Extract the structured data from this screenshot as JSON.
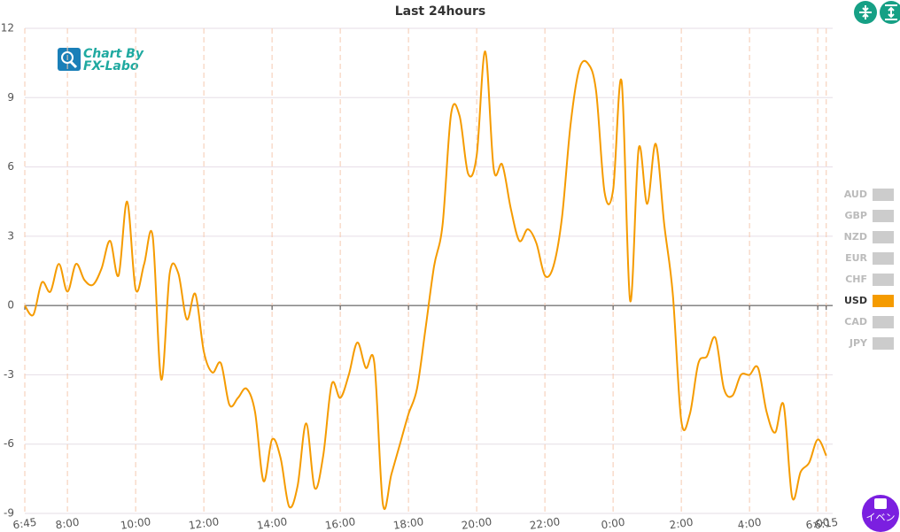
{
  "chart_data": {
    "type": "line",
    "title": "Last 24hours",
    "logo": [
      "Chart By",
      "FX-Labo"
    ],
    "event_button": "イベン",
    "categories": [
      "6:45",
      null,
      null,
      null,
      null,
      "8:00",
      null,
      null,
      null,
      null,
      null,
      null,
      null,
      "10:00",
      null,
      null,
      null,
      null,
      null,
      null,
      null,
      "12:00",
      null,
      null,
      null,
      null,
      null,
      null,
      null,
      "14:00",
      null,
      null,
      null,
      null,
      null,
      null,
      null,
      "16:00",
      null,
      null,
      null,
      null,
      null,
      null,
      null,
      "18:00",
      null,
      null,
      null,
      null,
      null,
      null,
      null,
      "20:00",
      null,
      null,
      null,
      null,
      null,
      null,
      null,
      "22:00",
      null,
      null,
      null,
      null,
      null,
      null,
      null,
      "0:00",
      null,
      null,
      null,
      null,
      null,
      null,
      null,
      "2:00",
      null,
      null,
      null,
      null,
      null,
      null,
      null,
      "4:00",
      null,
      null,
      null,
      null,
      null,
      null,
      null,
      "6:00",
      "6:15"
    ],
    "series": [
      {
        "name": "AUD",
        "color": "#cccccc",
        "visible": false
      },
      {
        "name": "GBP",
        "color": "#cccccc",
        "visible": false
      },
      {
        "name": "NZD",
        "color": "#cccccc",
        "visible": false
      },
      {
        "name": "EUR",
        "color": "#cccccc",
        "visible": false
      },
      {
        "name": "CHF",
        "color": "#cccccc",
        "visible": false
      },
      {
        "name": "USD",
        "color": "#f59b00",
        "visible": true,
        "values": [
          0,
          -0.4,
          1.0,
          0.6,
          1.8,
          0.6,
          1.8,
          1.1,
          0.9,
          1.6,
          2.8,
          1.3,
          4.5,
          0.7,
          1.8,
          3.0,
          -3.2,
          1.4,
          1.4,
          -0.6,
          0.5,
          -2.0,
          -2.9,
          -2.5,
          -4.3,
          -4.0,
          -3.6,
          -4.6,
          -7.6,
          -5.8,
          -6.6,
          -8.7,
          -7.8,
          -5.1,
          -7.9,
          -6.5,
          -3.4,
          -4.0,
          -3.0,
          -1.6,
          -2.7,
          -2.5,
          -8.6,
          -7.3,
          -6.0,
          -4.7,
          -3.6,
          -1.0,
          1.7,
          3.5,
          8.3,
          8.2,
          5.7,
          6.5,
          11.0,
          5.9,
          6.1,
          4.2,
          2.8,
          3.3,
          2.7,
          1.3,
          1.7,
          3.8,
          7.8,
          10.2,
          10.5,
          9.3,
          4.9,
          5.0,
          9.7,
          0.2,
          6.8,
          4.4,
          7.0,
          3.5,
          0.5,
          -5.0,
          -4.7,
          -2.5,
          -2.2,
          -1.4,
          -3.6,
          -3.9,
          -3.0,
          -3.0,
          -2.7,
          -4.6,
          -5.5,
          -4.3,
          -8.3,
          -7.2,
          -6.8,
          -5.8,
          -6.5
        ]
      },
      {
        "name": "CAD",
        "color": "#cccccc",
        "visible": false
      },
      {
        "name": "JPY",
        "color": "#cccccc",
        "visible": false
      }
    ],
    "ylim": [
      -9,
      12
    ],
    "yticks": [
      -9,
      -6,
      -3,
      0,
      3,
      6,
      9,
      12
    ],
    "grid": true
  }
}
